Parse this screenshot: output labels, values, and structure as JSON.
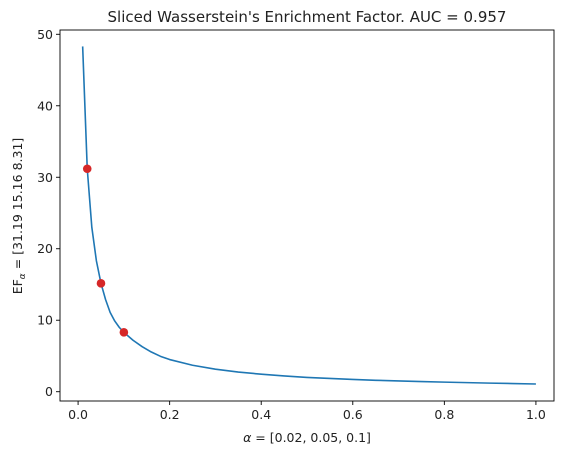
{
  "chart_data": {
    "type": "line",
    "title": "Sliced Wasserstein's Enrichment Factor. AUC = 0.957",
    "xlabel_symbol": "α",
    "xlabel_rest": " = [0.02, 0.05, 0.1]",
    "ylabel_main": "EF",
    "ylabel_sub": "α",
    "ylabel_rest": " = [31.19 15.16  8.31]",
    "xlim": [
      -0.0395,
      1.0395
    ],
    "ylim": [
      -1.3,
      50.6
    ],
    "xticks": [
      0.0,
      0.2,
      0.4,
      0.6,
      0.8,
      1.0
    ],
    "xtick_labels": [
      "0.0",
      "0.2",
      "0.4",
      "0.6",
      "0.8",
      "1.0"
    ],
    "yticks": [
      0,
      10,
      20,
      30,
      40,
      50
    ],
    "ytick_labels": [
      "0",
      "10",
      "20",
      "30",
      "40",
      "50"
    ],
    "grid": false,
    "series": [
      {
        "color": "#1f77b4",
        "x": [
          0.01,
          0.02,
          0.03,
          0.04,
          0.05,
          0.06,
          0.07,
          0.08,
          0.09,
          0.1,
          0.12,
          0.14,
          0.16,
          0.18,
          0.2,
          0.25,
          0.3,
          0.35,
          0.4,
          0.45,
          0.5,
          0.55,
          0.6,
          0.65,
          0.7,
          0.75,
          0.8,
          0.85,
          0.9,
          0.95,
          1.0
        ],
        "y": [
          48.3,
          31.19,
          23.0,
          18.3,
          15.16,
          12.9,
          11.1,
          9.9,
          9.0,
          8.31,
          7.2,
          6.3,
          5.55,
          4.95,
          4.5,
          3.7,
          3.15,
          2.75,
          2.45,
          2.2,
          2.0,
          1.85,
          1.72,
          1.6,
          1.5,
          1.42,
          1.34,
          1.27,
          1.2,
          1.14,
          1.08
        ]
      }
    ],
    "markers": {
      "color": "#d62728",
      "x": [
        0.02,
        0.05,
        0.1
      ],
      "y": [
        31.19,
        15.16,
        8.31
      ]
    }
  }
}
